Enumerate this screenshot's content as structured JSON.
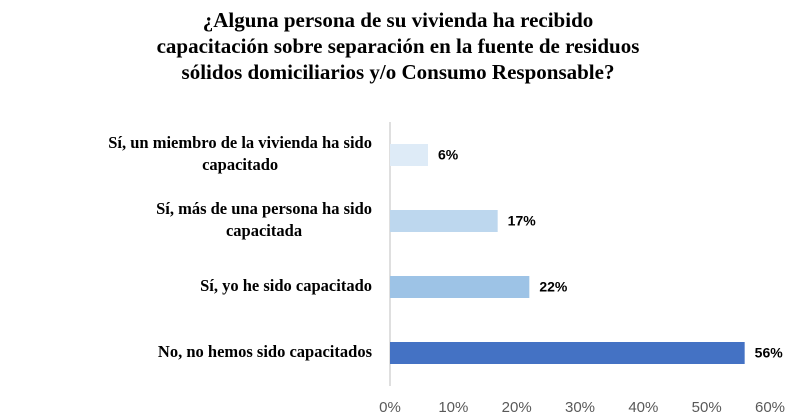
{
  "chart_data": {
    "type": "bar",
    "orientation": "horizontal",
    "title": [
      "¿Alguna persona de su vivienda ha recibido",
      "capacitación sobre separación en la fuente de residuos",
      "sólidos domiciliarios y/o Consumo Responsable?"
    ],
    "categories": [
      [
        "Sí, un miembro de la vivienda ha sido",
        "capacitado"
      ],
      [
        "Sí, más de una persona ha sido",
        "capacitada"
      ],
      [
        "Sí, yo he sido capacitado"
      ],
      [
        "No, no hemos sido capacitados"
      ]
    ],
    "values": [
      6,
      17,
      22,
      56
    ],
    "value_labels": [
      "6%",
      "17%",
      "22%",
      "56%"
    ],
    "colors": [
      "#deebf7",
      "#bdd7ee",
      "#9dc3e6",
      "#4472c4"
    ],
    "xlim": [
      0,
      60
    ],
    "xticks": [
      {
        "value": 0,
        "label": "0%"
      },
      {
        "value": 10,
        "label": "10%"
      },
      {
        "value": 20,
        "label": "20%"
      },
      {
        "value": 30,
        "label": "30%"
      },
      {
        "value": 40,
        "label": "40%"
      },
      {
        "value": 50,
        "label": "50%"
      },
      {
        "value": 60,
        "label": "60%"
      }
    ],
    "grid": false
  }
}
